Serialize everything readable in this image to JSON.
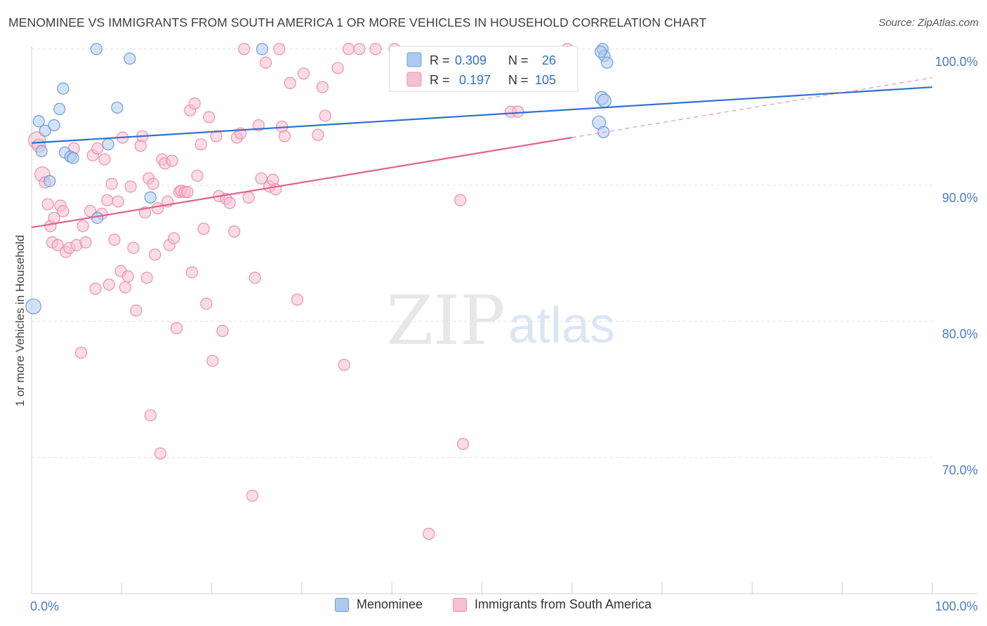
{
  "title": "MENOMINEE VS IMMIGRANTS FROM SOUTH AMERICA 1 OR MORE VEHICLES IN HOUSEHOLD CORRELATION CHART",
  "source": "Source: ZipAtlas.com",
  "watermark": {
    "zip": "ZIP",
    "atlas": "atlas"
  },
  "colors": {
    "blue_fill": "#aecbef",
    "blue_stroke": "#6d9bd8",
    "blue_line": "#2f6fcc",
    "pink_fill": "#f7bfd2",
    "pink_stroke": "#e88fae",
    "pink_line": "#e0628f",
    "axis_text": "#4a7bc8",
    "grid": "#dddddd"
  },
  "legend_top": {
    "rows": [
      {
        "r_label": "R =",
        "r_value": "0.309",
        "n_label": "N =",
        "n_value": "26"
      },
      {
        "r_label": "R =",
        "r_value": "0.197",
        "n_label": "N =",
        "n_value": "105"
      }
    ]
  },
  "legend_bottom": [
    {
      "label": "Menominee"
    },
    {
      "label": "Immigrants from South America"
    }
  ],
  "chart_data": {
    "type": "scatter",
    "xlabel": "",
    "ylabel": "1 or more Vehicles in Household",
    "xlim": [
      0,
      100
    ],
    "ylim": [
      60,
      100.2
    ],
    "x_tick_labels": [
      "0.0%",
      "100.0%"
    ],
    "y_ticks": [
      70,
      80,
      90,
      100
    ],
    "y_tick_labels": [
      "70.0%",
      "80.0%",
      "90.0%",
      "100.0%"
    ],
    "grid": true,
    "legend_placement": "top-center",
    "series": [
      {
        "name": "Menominee",
        "trend": {
          "x0": 0,
          "y0": 93.1,
          "x1": 100,
          "y1": 97.2
        },
        "points": [
          [
            0.2,
            81.1,
            16
          ],
          [
            0.8,
            94.7,
            12
          ],
          [
            1.1,
            92.5,
            12
          ],
          [
            1.5,
            94.0,
            12
          ],
          [
            2.0,
            90.3,
            12
          ],
          [
            2.5,
            94.4,
            12
          ],
          [
            3.1,
            95.6,
            12
          ],
          [
            3.5,
            97.1,
            12
          ],
          [
            3.7,
            92.4,
            12
          ],
          [
            4.3,
            92.1,
            12
          ],
          [
            4.6,
            92.0,
            12
          ],
          [
            7.2,
            100.0,
            12
          ],
          [
            7.3,
            87.6,
            12
          ],
          [
            8.5,
            93.0,
            12
          ],
          [
            9.5,
            95.7,
            12
          ],
          [
            10.9,
            99.3,
            12
          ],
          [
            13.2,
            89.1,
            12
          ],
          [
            25.6,
            100.0,
            12
          ],
          [
            63.0,
            94.6,
            14
          ],
          [
            63.3,
            96.4,
            14
          ],
          [
            63.6,
            96.2,
            14
          ],
          [
            63.4,
            100.0,
            12
          ],
          [
            63.6,
            99.5,
            12
          ],
          [
            63.9,
            99.0,
            12
          ],
          [
            63.2,
            99.8,
            12
          ],
          [
            63.5,
            93.9,
            12
          ]
        ]
      },
      {
        "name": "Immigrants from South America",
        "trend": {
          "x0": 0,
          "y0": 86.9,
          "x1": 60,
          "y1": 93.5,
          "dash_x1": 100,
          "dash_y1": 97.9
        },
        "points": [
          [
            0.6,
            93.3,
            18
          ],
          [
            0.8,
            92.9,
            14
          ],
          [
            1.2,
            90.8,
            16
          ],
          [
            1.5,
            90.2,
            12
          ],
          [
            1.8,
            88.6,
            12
          ],
          [
            2.1,
            87.0,
            12
          ],
          [
            2.3,
            85.8,
            12
          ],
          [
            2.5,
            87.6,
            12
          ],
          [
            2.9,
            85.6,
            12
          ],
          [
            3.2,
            88.5,
            12
          ],
          [
            3.5,
            88.1,
            12
          ],
          [
            3.8,
            85.1,
            12
          ],
          [
            4.2,
            85.4,
            12
          ],
          [
            4.7,
            92.7,
            12
          ],
          [
            5.0,
            85.6,
            12
          ],
          [
            5.5,
            77.7,
            12
          ],
          [
            5.7,
            87.0,
            12
          ],
          [
            6.0,
            85.8,
            12
          ],
          [
            6.5,
            88.1,
            12
          ],
          [
            6.8,
            92.2,
            12
          ],
          [
            7.1,
            82.4,
            12
          ],
          [
            7.3,
            92.7,
            12
          ],
          [
            7.8,
            87.9,
            12
          ],
          [
            8.1,
            91.9,
            12
          ],
          [
            8.4,
            88.9,
            12
          ],
          [
            8.6,
            82.7,
            12
          ],
          [
            8.9,
            90.1,
            12
          ],
          [
            9.2,
            86.0,
            12
          ],
          [
            9.6,
            88.8,
            12
          ],
          [
            9.9,
            83.7,
            12
          ],
          [
            10.1,
            93.5,
            12
          ],
          [
            10.4,
            82.5,
            12
          ],
          [
            10.7,
            83.3,
            12
          ],
          [
            11.0,
            89.9,
            12
          ],
          [
            11.3,
            85.4,
            12
          ],
          [
            11.6,
            80.8,
            12
          ],
          [
            12.1,
            92.9,
            12
          ],
          [
            12.3,
            93.6,
            12
          ],
          [
            12.6,
            88.0,
            12
          ],
          [
            12.8,
            83.2,
            12
          ],
          [
            13.0,
            90.5,
            12
          ],
          [
            13.2,
            73.1,
            12
          ],
          [
            13.5,
            90.1,
            12
          ],
          [
            13.7,
            84.9,
            12
          ],
          [
            14.0,
            88.3,
            12
          ],
          [
            14.3,
            70.3,
            12
          ],
          [
            14.5,
            91.9,
            12
          ],
          [
            14.8,
            91.6,
            12
          ],
          [
            15.1,
            88.8,
            12
          ],
          [
            15.3,
            85.6,
            12
          ],
          [
            15.6,
            91.8,
            12
          ],
          [
            15.8,
            86.1,
            12
          ],
          [
            16.1,
            79.5,
            12
          ],
          [
            16.4,
            89.5,
            12
          ],
          [
            16.6,
            89.6,
            12
          ],
          [
            17.0,
            89.5,
            12
          ],
          [
            17.3,
            89.5,
            12
          ],
          [
            17.6,
            95.5,
            12
          ],
          [
            17.8,
            83.6,
            12
          ],
          [
            18.1,
            96.0,
            12
          ],
          [
            18.4,
            90.7,
            12
          ],
          [
            18.8,
            93.0,
            12
          ],
          [
            19.1,
            86.8,
            12
          ],
          [
            19.4,
            81.3,
            12
          ],
          [
            19.7,
            95.0,
            12
          ],
          [
            20.1,
            77.1,
            12
          ],
          [
            20.5,
            93.6,
            12
          ],
          [
            20.8,
            89.2,
            12
          ],
          [
            21.2,
            79.3,
            12
          ],
          [
            21.6,
            89.0,
            12
          ],
          [
            22.0,
            88.7,
            12
          ],
          [
            22.5,
            86.6,
            12
          ],
          [
            22.8,
            93.5,
            12
          ],
          [
            23.2,
            93.8,
            12
          ],
          [
            23.6,
            100.0,
            12
          ],
          [
            24.1,
            89.1,
            12
          ],
          [
            24.5,
            67.2,
            12
          ],
          [
            24.8,
            83.2,
            12
          ],
          [
            25.2,
            94.4,
            12
          ],
          [
            25.5,
            90.5,
            12
          ],
          [
            26.0,
            99.0,
            12
          ],
          [
            26.4,
            89.9,
            12
          ],
          [
            26.8,
            90.4,
            12
          ],
          [
            27.1,
            89.7,
            12
          ],
          [
            27.5,
            100.0,
            12
          ],
          [
            27.8,
            94.3,
            12
          ],
          [
            28.1,
            93.6,
            12
          ],
          [
            28.7,
            97.5,
            12
          ],
          [
            29.5,
            81.6,
            12
          ],
          [
            30.2,
            98.2,
            12
          ],
          [
            31.8,
            93.7,
            12
          ],
          [
            32.3,
            97.2,
            12
          ],
          [
            32.6,
            95.1,
            12
          ],
          [
            34.0,
            98.6,
            12
          ],
          [
            34.7,
            76.8,
            12
          ],
          [
            35.2,
            100.0,
            12
          ],
          [
            36.4,
            100.0,
            12
          ],
          [
            38.2,
            100.0,
            12
          ],
          [
            40.3,
            100.0,
            12
          ],
          [
            44.1,
            64.4,
            12
          ],
          [
            47.6,
            88.9,
            12
          ],
          [
            47.9,
            71.0,
            12
          ],
          [
            53.2,
            95.4,
            12
          ],
          [
            54.0,
            95.4,
            12
          ],
          [
            59.5,
            100.0,
            12
          ]
        ]
      }
    ]
  }
}
